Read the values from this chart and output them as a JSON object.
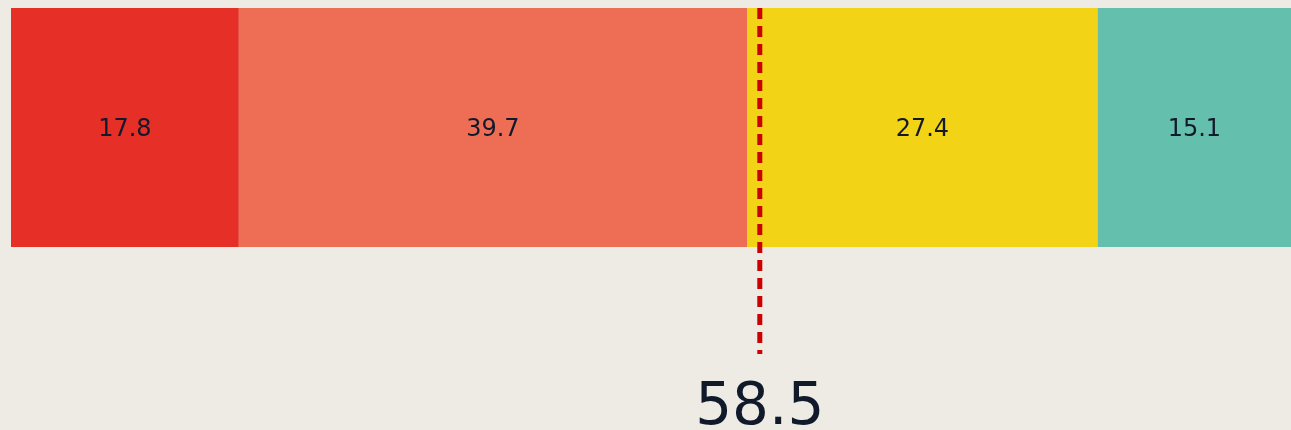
{
  "chart_data": {
    "type": "bar",
    "orientation": "horizontal",
    "stacked": true,
    "categories": [
      null
    ],
    "series": [
      {
        "color": "#e52f27",
        "values": [
          17.8
        ]
      },
      {
        "color": "#ed6e55",
        "values": [
          39.7
        ]
      },
      {
        "color": "#f2d316",
        "values": [
          27.4
        ]
      },
      {
        "color": "#65bfad",
        "values": [
          15.1
        ]
      }
    ],
    "xlim": [
      0,
      100
    ],
    "data_labels": true,
    "ref_lines": [
      {
        "axis": "x",
        "value": 58.5,
        "label": "58.5",
        "color": "#cc0000",
        "line_style": "dashed"
      }
    ]
  }
}
